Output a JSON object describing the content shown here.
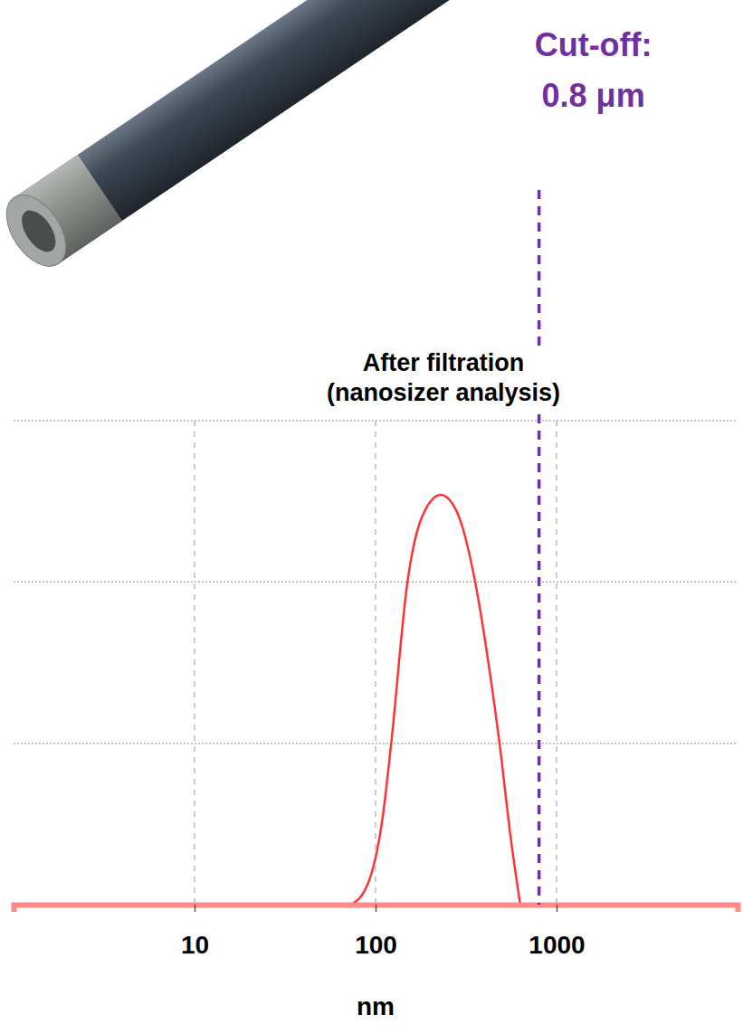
{
  "chart_data": {
    "type": "line",
    "title": "After filtration (nanosizer analysis)",
    "x_label": "nm",
    "log": "x",
    "grid": true,
    "tick_labels": "x",
    "xlim": [
      1,
      10000
    ],
    "xticks": [
      10,
      100,
      1000
    ],
    "ylim": [
      0,
      15
    ],
    "yticks": [
      0,
      5,
      10,
      15
    ],
    "x": [
      73,
      90,
      110,
      122,
      150,
      180,
      229,
      280,
      355,
      420,
      484,
      560,
      630
    ],
    "values": [
      0,
      0.6,
      2.8,
      5,
      10,
      12,
      12.7,
      12.2,
      10,
      7.5,
      5,
      2,
      0
    ],
    "color": "#ff3333",
    "annotations": [
      {
        "text": "Cut-off: 0.8 μm",
        "x": 800,
        "color": "#7030a0",
        "line_style": "dashed"
      }
    ]
  }
}
